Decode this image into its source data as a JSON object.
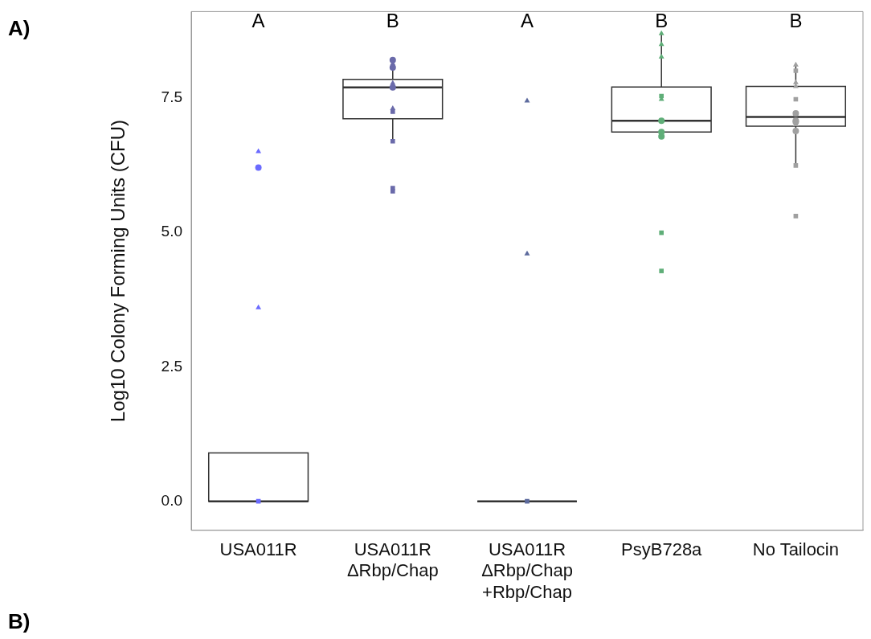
{
  "chart_data": {
    "type": "box",
    "categories": [
      "USA011R",
      "USA011R\nΔRbp/Chap",
      "USA011R\nΔRbp/Chap\n+Rbp/Chap",
      "PsyB728a",
      "No Tailocin"
    ],
    "ylabel": "Log10 Colony Forming Units (CFU)",
    "ylim": [
      -0.54,
      9.1
    ],
    "yticks": [
      {
        "value": 0,
        "label": "0.0"
      },
      {
        "value": 2.5,
        "label": "2.5"
      },
      {
        "value": 5,
        "label": "5.0"
      },
      {
        "value": 7.5,
        "label": "7.5"
      }
    ],
    "grid": false,
    "legend": false,
    "color": "#333333",
    "boxes": [
      {
        "low": 0,
        "q1": 0,
        "median": 0,
        "q3": 0.9,
        "high": 0.9
      },
      {
        "low": 6.69,
        "q1": 7.11,
        "median": 7.69,
        "q3": 7.84,
        "high": 8.2
      },
      {
        "low": 0,
        "q1": 0,
        "median": 0,
        "q3": 0,
        "high": 0
      },
      {
        "low": 6.78,
        "q1": 6.86,
        "median": 7.07,
        "q3": 7.7,
        "high": 8.69
      },
      {
        "low": 6.26,
        "q1": 6.97,
        "median": 7.14,
        "q3": 7.71,
        "high": 8.09
      }
    ],
    "series": [
      {
        "type": "scatter",
        "marker": "circle",
        "x": [
          "USA011R",
          "USA011R\nΔRbp/Chap",
          "USA011R\nΔRbp/Chap",
          "USA011R\nΔRbp/Chap",
          "PsyB728a",
          "PsyB728a",
          "PsyB728a",
          "No Tailocin",
          "No Tailocin",
          "No Tailocin",
          "No Tailocin"
        ],
        "values": [
          6.2,
          8.2,
          8.06,
          7.69,
          7.07,
          6.86,
          6.78,
          7.21,
          7.07,
          7.05,
          6.88
        ],
        "colors": [
          "#6b6bff",
          "#6a6aaa",
          "#6a6aaa",
          "#6a6aaa",
          "#5fae78",
          "#5fae78",
          "#5fae78",
          "#a0a0a0",
          "#a0a0a0",
          "#a0a0a0",
          "#a0a0a0"
        ]
      },
      {
        "type": "scatter",
        "marker": "square",
        "x": [
          "USA011R",
          "USA011R\nΔRbp/Chap",
          "USA011R\nΔRbp/Chap",
          "USA011R\nΔRbp/Chap",
          "USA011R\nΔRbp/Chap",
          "USA011R\nΔRbp/Chap\n+Rbp/Chap",
          "PsyB728a",
          "PsyB728a",
          "PsyB728a",
          "No Tailocin",
          "No Tailocin",
          "No Tailocin",
          "No Tailocin"
        ],
        "values": [
          0,
          7.24,
          6.69,
          5.82,
          5.76,
          0,
          7.53,
          4.99,
          4.28,
          8.0,
          7.47,
          6.24,
          5.3
        ],
        "colors": [
          "#6b6bff",
          "#6a6aaa",
          "#6a6aaa",
          "#6a6aaa",
          "#6a6aaa",
          "#5d6b9e",
          "#5fae78",
          "#5fae78",
          "#5fae78",
          "#a0a0a0",
          "#a0a0a0",
          "#a0a0a0",
          "#a0a0a0"
        ]
      },
      {
        "type": "scatter",
        "marker": "triangle",
        "x": [
          "USA011R",
          "USA011R",
          "USA011R\nΔRbp/Chap",
          "USA011R\nΔRbp/Chap",
          "USA011R\nΔRbp/Chap",
          "USA011R\nΔRbp/Chap\n+Rbp/Chap",
          "USA011R\nΔRbp/Chap\n+Rbp/Chap",
          "PsyB728a",
          "PsyB728a",
          "PsyB728a",
          "PsyB728a",
          "No Tailocin",
          "No Tailocin",
          "No Tailocin",
          "No Tailocin"
        ],
        "values": [
          6.5,
          3.6,
          8.13,
          7.77,
          7.3,
          7.44,
          4.6,
          8.69,
          8.49,
          8.26,
          7.47,
          8.11,
          7.78,
          7.71,
          7.0
        ],
        "colors": [
          "#6b6bff",
          "#6b6bff",
          "#6a6aaa",
          "#6a6aaa",
          "#6a6aaa",
          "#5d6b9e",
          "#5d6b9e",
          "#5fae78",
          "#5fae78",
          "#5fae78",
          "#5fae78",
          "#a0a0a0",
          "#a0a0a0",
          "#a0a0a0",
          "#a0a0a0"
        ]
      }
    ],
    "annotations": [
      "A",
      "B",
      "A",
      "B",
      "B",
      "A)",
      "B)"
    ]
  }
}
